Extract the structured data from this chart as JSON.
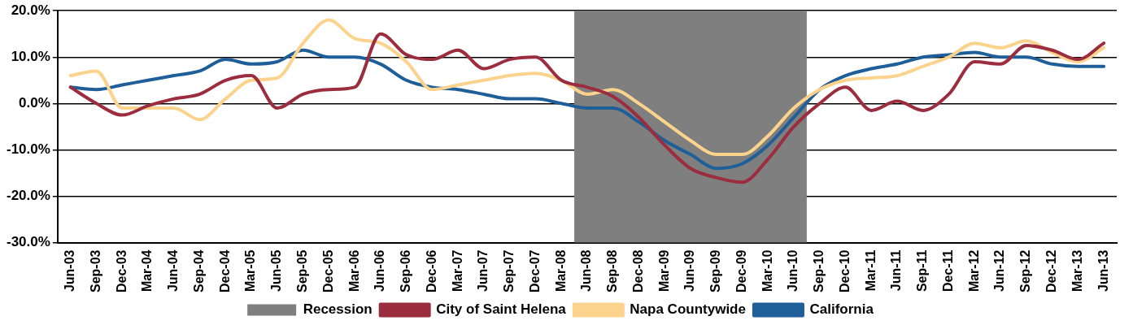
{
  "chart_data": {
    "type": "line",
    "categories": [
      "Jun-03",
      "Sep-03",
      "Dec-03",
      "Mar-04",
      "Jun-04",
      "Sep-04",
      "Dec-04",
      "Mar-05",
      "Jun-05",
      "Sep-05",
      "Dec-05",
      "Mar-06",
      "Jun-06",
      "Sep-06",
      "Dec-06",
      "Mar-07",
      "Jun-07",
      "Sep-07",
      "Dec-07",
      "Mar-08",
      "Jun-08",
      "Sep-08",
      "Dec-08",
      "Mar-09",
      "Jun-09",
      "Sep-09",
      "Dec-09",
      "Mar-10",
      "Jun-10",
      "Sep-10",
      "Dec-10",
      "Mar-11",
      "Jun-11",
      "Sep-11",
      "Dec-11",
      "Mar-12",
      "Jun-12",
      "Sep-12",
      "Dec-12",
      "Mar-13",
      "Jun-13"
    ],
    "series": [
      {
        "name": "City of Saint Helena",
        "color": "#9b2d3f",
        "values": [
          3.5,
          0,
          -2.5,
          -0.5,
          1,
          2,
          5,
          6,
          -1,
          2,
          3,
          3.5,
          15,
          10.5,
          9.5,
          11.5,
          7.5,
          9.5,
          10,
          5,
          3.5,
          1.5,
          -3,
          -9,
          -14,
          -16,
          -17,
          -12,
          -5,
          0,
          3.5,
          -1.5,
          0.5,
          -1.5,
          2,
          9,
          8.5,
          12.5,
          11.5,
          9.5,
          13
        ]
      },
      {
        "name": "Napa Countywide",
        "color": "#fcd38c",
        "values": [
          6,
          7,
          -1,
          -1,
          -1,
          -3.5,
          1,
          5,
          5.5,
          13,
          18,
          14,
          13,
          9,
          3,
          4,
          5,
          6,
          6.5,
          5,
          2,
          3,
          0,
          -4,
          -8,
          -11,
          -11,
          -7,
          -1,
          3,
          5,
          5.5,
          6,
          8,
          10,
          13,
          12,
          13.5,
          11,
          9,
          12
        ]
      },
      {
        "name": "California",
        "color": "#1f5f99",
        "values": [
          3.5,
          3,
          4,
          5,
          6,
          7,
          9.5,
          8.5,
          9,
          11.5,
          10,
          10,
          8.5,
          5,
          3.5,
          3,
          2,
          1,
          1,
          0,
          -1,
          -1,
          -4,
          -8,
          -11,
          -14,
          -13,
          -9,
          -3,
          3,
          6,
          7.5,
          8.5,
          10,
          10.5,
          11,
          10,
          10,
          8.5,
          8,
          8
        ]
      }
    ],
    "ylim": [
      -30,
      20
    ],
    "yticks": [
      {
        "value": -30,
        "label": "-30.0%"
      },
      {
        "value": -20,
        "label": "-20.0%"
      },
      {
        "value": -10,
        "label": "-10.0%"
      },
      {
        "value": 0,
        "label": "0.0%"
      },
      {
        "value": 10,
        "label": "10.0%"
      },
      {
        "value": 20,
        "label": "20.0%"
      }
    ],
    "bands": [
      {
        "axis": "x",
        "from": "Jun-08",
        "to": "Jun-10",
        "label": "Recession",
        "color": "#7f7f7f"
      }
    ],
    "grid": "y",
    "legend": "bottom",
    "marker": "none",
    "line_style": "solid"
  }
}
